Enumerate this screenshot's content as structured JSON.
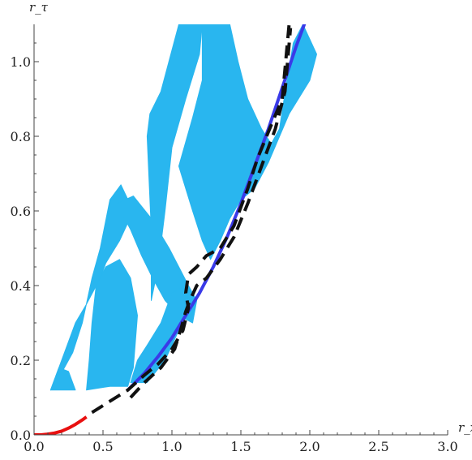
{
  "chart_data": {
    "type": "line",
    "title": "",
    "xlabel": "r_x",
    "ylabel": "r_τ",
    "xlim": [
      0,
      3.0
    ],
    "ylim": [
      0,
      1.1
    ],
    "grid": false,
    "legend": "none",
    "x_ticks": [
      "0.0",
      "0.5",
      "1.0",
      "1.5",
      "2.0",
      "2.5",
      "3.0"
    ],
    "y_ticks": [
      "0.0",
      "0.2",
      "0.4",
      "0.6",
      "0.8",
      "1.0"
    ],
    "regions": [
      {
        "color": "#29b6ef",
        "polygons": [
          [
            [
              0.12,
              0.12
            ],
            [
              0.2,
              0.2
            ],
            [
              0.3,
              0.3
            ],
            [
              0.38,
              0.35
            ],
            [
              0.48,
              0.42
            ],
            [
              0.52,
              0.46
            ],
            [
              0.62,
              0.52
            ],
            [
              0.72,
              0.6
            ],
            [
              0.63,
              0.67
            ],
            [
              0.55,
              0.63
            ],
            [
              0.48,
              0.5
            ],
            [
              0.42,
              0.42
            ],
            [
              0.35,
              0.3
            ],
            [
              0.28,
              0.22
            ],
            [
              0.22,
              0.18
            ],
            [
              0.16,
              0.14
            ]
          ],
          [
            [
              0.38,
              0.12
            ],
            [
              0.55,
              0.13
            ],
            [
              0.68,
              0.13
            ],
            [
              0.72,
              0.18
            ],
            [
              0.75,
              0.32
            ],
            [
              0.7,
              0.42
            ],
            [
              0.62,
              0.47
            ],
            [
              0.52,
              0.45
            ],
            [
              0.45,
              0.4
            ],
            [
              0.42,
              0.3
            ],
            [
              0.4,
              0.2
            ]
          ],
          [
            [
              0.85,
              0.36
            ],
            [
              0.85,
              0.55
            ],
            [
              0.82,
              0.8
            ],
            [
              0.84,
              0.86
            ],
            [
              0.92,
              0.92
            ],
            [
              1.05,
              1.1
            ],
            [
              1.22,
              1.1
            ],
            [
              1.2,
              1.02
            ],
            [
              1.1,
              0.9
            ],
            [
              1.0,
              0.77
            ],
            [
              0.95,
              0.6
            ],
            [
              0.9,
              0.45
            ]
          ],
          [
            [
              1.22,
              1.1
            ],
            [
              1.42,
              1.1
            ],
            [
              1.48,
              1.0
            ],
            [
              1.55,
              0.9
            ],
            [
              1.65,
              0.82
            ],
            [
              1.72,
              0.78
            ],
            [
              1.78,
              0.82
            ],
            [
              1.83,
              0.94
            ],
            [
              1.88,
              1.05
            ],
            [
              1.95,
              1.1
            ],
            [
              2.05,
              1.02
            ],
            [
              2.0,
              0.95
            ],
            [
              1.85,
              0.86
            ],
            [
              1.7,
              0.73
            ],
            [
              1.6,
              0.66
            ],
            [
              1.5,
              0.63
            ],
            [
              1.42,
              0.58
            ],
            [
              1.35,
              0.52
            ],
            [
              1.28,
              0.47
            ],
            [
              1.22,
              0.52
            ],
            [
              1.15,
              0.6
            ],
            [
              1.05,
              0.72
            ],
            [
              1.15,
              0.85
            ],
            [
              1.22,
              0.95
            ]
          ],
          [
            [
              0.6,
              0.62
            ],
            [
              0.72,
              0.64
            ],
            [
              0.85,
              0.58
            ],
            [
              0.98,
              0.5
            ],
            [
              1.05,
              0.45
            ],
            [
              1.12,
              0.4
            ],
            [
              1.18,
              0.36
            ],
            [
              1.15,
              0.3
            ],
            [
              1.05,
              0.32
            ],
            [
              0.95,
              0.36
            ],
            [
              0.86,
              0.42
            ],
            [
              0.78,
              0.48
            ],
            [
              0.7,
              0.55
            ]
          ],
          [
            [
              0.7,
              0.14
            ],
            [
              0.82,
              0.14
            ],
            [
              0.95,
              0.2
            ],
            [
              1.05,
              0.28
            ],
            [
              1.12,
              0.35
            ],
            [
              1.1,
              0.4
            ],
            [
              1.0,
              0.38
            ],
            [
              0.92,
              0.3
            ],
            [
              0.82,
              0.24
            ],
            [
              0.75,
              0.2
            ]
          ],
          [
            [
              0.12,
              0.12
            ],
            [
              0.3,
              0.12
            ],
            [
              0.25,
              0.17
            ],
            [
              0.18,
              0.18
            ]
          ]
        ]
      }
    ],
    "series": [
      {
        "color": "#e81010",
        "style": "solid",
        "x": [
          0.0,
          0.05,
          0.1,
          0.15,
          0.2,
          0.25,
          0.3,
          0.35,
          0.38
        ],
        "y": [
          0.0,
          0.0,
          0.002,
          0.005,
          0.01,
          0.018,
          0.028,
          0.04,
          0.048
        ]
      },
      {
        "color": "#3a3ae8",
        "style": "solid",
        "x": [
          0.68,
          0.8,
          0.9,
          1.0,
          1.1,
          1.2,
          1.3,
          1.4,
          1.5,
          1.6,
          1.7,
          1.8,
          1.9,
          1.97
        ],
        "y": [
          0.12,
          0.165,
          0.21,
          0.26,
          0.32,
          0.38,
          0.45,
          0.53,
          0.62,
          0.72,
          0.82,
          0.93,
          1.04,
          1.11
        ]
      },
      {
        "color": "#111111",
        "style": "dashed",
        "x": [
          0.42,
          0.55,
          0.68,
          0.8,
          0.9,
          1.0,
          1.08,
          1.12,
          1.1,
          1.12,
          1.18,
          1.25,
          1.35,
          1.45,
          1.55,
          1.62,
          1.72,
          1.8,
          1.85
        ],
        "y": [
          0.06,
          0.09,
          0.12,
          0.16,
          0.19,
          0.23,
          0.28,
          0.34,
          0.38,
          0.43,
          0.45,
          0.48,
          0.5,
          0.56,
          0.66,
          0.74,
          0.83,
          0.9,
          1.1
        ]
      },
      {
        "color": "#111111",
        "style": "dashed",
        "x": [
          0.7,
          0.8,
          0.92,
          1.02,
          1.07,
          1.1,
          1.13,
          1.18,
          1.25,
          1.35,
          1.45,
          1.55,
          1.65,
          1.75,
          1.82,
          1.86
        ],
        "y": [
          0.1,
          0.14,
          0.18,
          0.23,
          0.29,
          0.33,
          0.36,
          0.4,
          0.42,
          0.47,
          0.53,
          0.62,
          0.72,
          0.82,
          0.92,
          1.09
        ]
      }
    ]
  }
}
